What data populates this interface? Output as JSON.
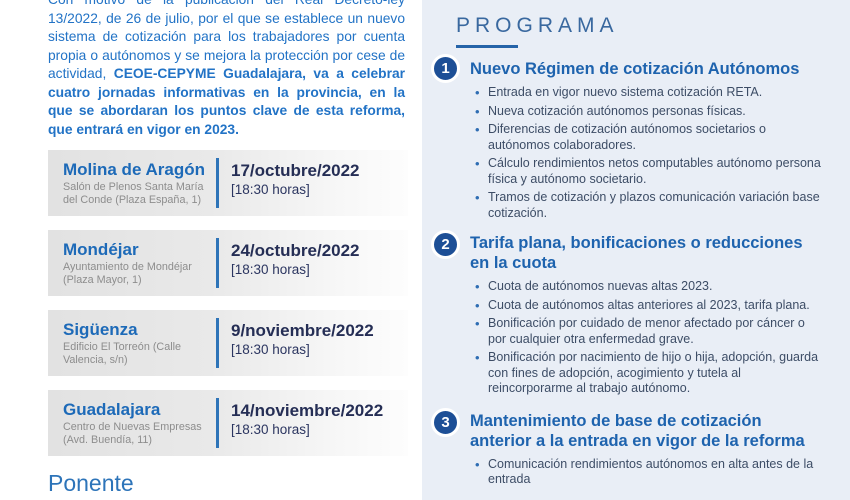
{
  "intro": {
    "regular": "Con motivo de la publicación del Real Decreto-ley 13/2022, de 26 de julio, por el que se establece un nuevo sistema de cotización para los trabajadores por cuenta propia o autónomos y se mejora la protección por cese de actividad, ",
    "bold": "CEOE-CEPYME Guadalajara, va a celebrar cuatro jornadas informativas en la provincia, en la que se abordaran los puntos clave de esta reforma, que entrará en vigor en 2023."
  },
  "events": [
    {
      "city": "Molina de Aragón",
      "venue": "Salón de Plenos Santa María del Conde (Plaza España, 1)",
      "date": "17/octubre/2022",
      "time": "[18:30 horas]"
    },
    {
      "city": "Mondéjar",
      "venue": "Ayuntamiento de Mondéjar (Plaza Mayor, 1)",
      "date": "24/octubre/2022",
      "time": "[18:30 horas]"
    },
    {
      "city": "Sigüenza",
      "venue": "Edificio El Torreón (Calle Valencia, s/n)",
      "date": "9/noviembre/2022",
      "time": "[18:30 horas]"
    },
    {
      "city": "Guadalajara",
      "venue": "Centro de Nuevas Empresas (Avd. Buendía, 11)",
      "date": "14/noviembre/2022",
      "time": "[18:30 horas]"
    }
  ],
  "ponente_heading": "Ponente",
  "programa": {
    "heading": "PROGRAMA",
    "sections": [
      {
        "number": "1",
        "title": "Nuevo Régimen de cotización Autónomos",
        "bullets": [
          "Entrada en vigor nuevo sistema cotización RETA.",
          "Nueva cotización autónomos personas físicas.",
          "Diferencias de cotización autónomos societarios o autónomos colaboradores.",
          "Cálculo rendimientos netos computables autónomo persona física y autónomo societario.",
          "Tramos de cotización y plazos comunicación variación base cotización."
        ]
      },
      {
        "number": "2",
        "title": "Tarifa plana, bonificaciones o reducciones en la cuota",
        "bullets": [
          "Cuota de autónomos nuevas altas 2023.",
          "Cuota de autónomos altas anteriores al 2023, tarifa plana.",
          "Bonificación por cuidado de menor afectado por cáncer o por cualquier otra enfermedad grave.",
          "Bonificación por nacimiento de hijo o hija, adopción, guarda con fines de adopción, acogimiento y tutela al reincorporarme al trabajo autónomo."
        ]
      },
      {
        "number": "3",
        "title": "Mantenimiento de base de cotización anterior a la entrada en vigor de la reforma",
        "bullets": [
          "Comunicación rendimientos autónomos en alta antes de la entrada"
        ]
      }
    ]
  },
  "colors": {
    "intro_blue": "#2273c6",
    "city_blue": "#1d6ab8",
    "venue_gray": "#8d8d8d",
    "date_navy": "#252e55",
    "divider_blue": "#2e74b8",
    "panel_background": "#e9eef6",
    "programa_blue": "#39689f",
    "badge_blue": "#1d4f96",
    "section_title_blue": "#1e63ae",
    "bullet_text": "#3d4d66"
  }
}
